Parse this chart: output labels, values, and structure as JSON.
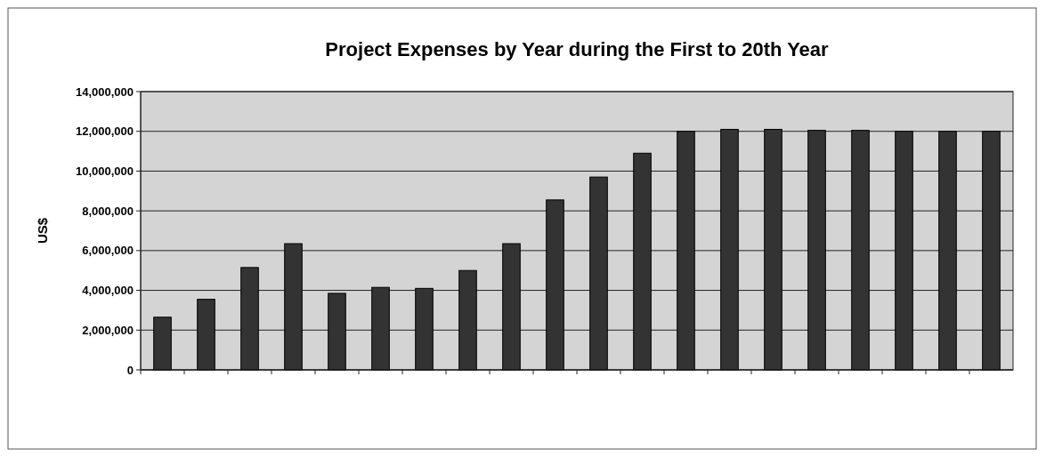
{
  "chart_data": {
    "type": "bar",
    "title": "Project Expenses by Year during the First to 20th Year",
    "ylabel": "US$",
    "categories": [
      null,
      null,
      null,
      null,
      null,
      null,
      null,
      null,
      null,
      null,
      null,
      null,
      null,
      null,
      null,
      null,
      null,
      null,
      null,
      null
    ],
    "values": [
      2650000,
      3550000,
      5150000,
      6350000,
      3850000,
      4150000,
      4100000,
      5000000,
      6350000,
      8550000,
      9700000,
      10900000,
      12000000,
      12100000,
      12100000,
      12050000,
      12050000,
      12000000,
      12000000,
      12000000
    ],
    "color": "#333333",
    "ylim": [
      0,
      14000000
    ],
    "yticks": [
      {
        "value": 0,
        "label": "0"
      },
      {
        "value": 2000000,
        "label": "2,000,000"
      },
      {
        "value": 4000000,
        "label": "4,000,000"
      },
      {
        "value": 6000000,
        "label": "6,000,000"
      },
      {
        "value": 8000000,
        "label": "8,000,000"
      },
      {
        "value": 10000000,
        "label": "10,000,000"
      },
      {
        "value": 12000000,
        "label": "12,000,000"
      },
      {
        "value": 14000000,
        "label": "14,000,000"
      }
    ],
    "grid": "y"
  }
}
